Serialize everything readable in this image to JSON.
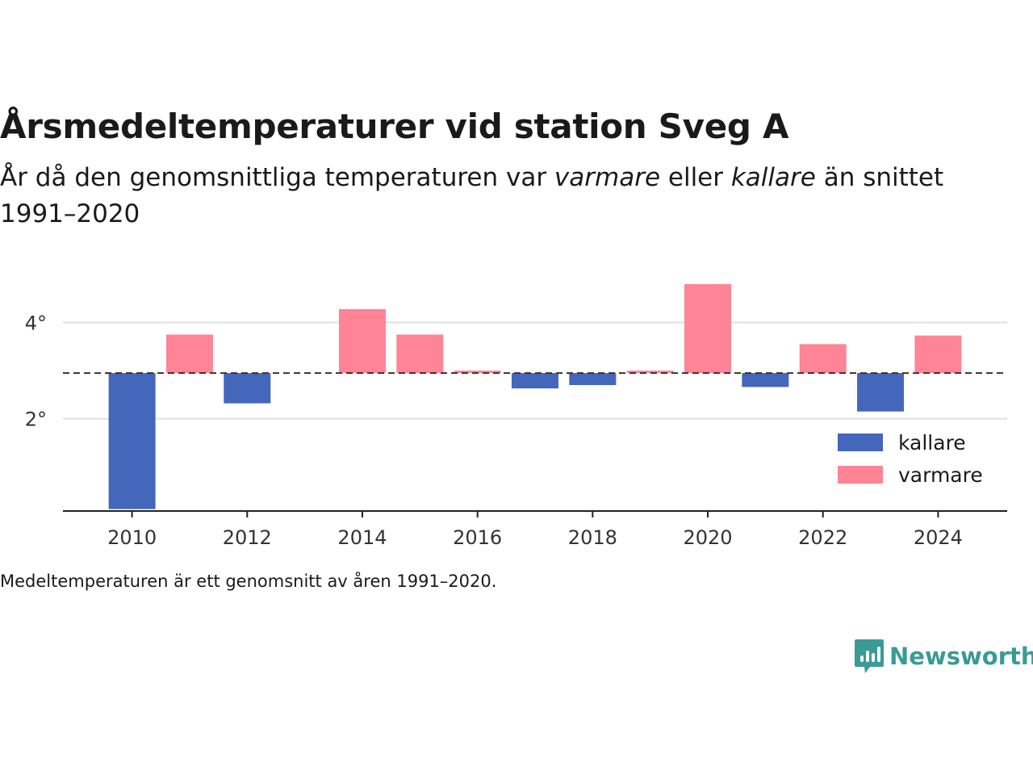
{
  "header": {
    "title": "Årsmedeltemperaturer vid station Sveg A",
    "subtitle_pre": "År då den genomsnittliga temperaturen var ",
    "subtitle_warm": "varmare",
    "subtitle_mid": " eller ",
    "subtitle_cold": "kallare",
    "subtitle_post": " än snittet 1991–2020"
  },
  "footnote": "Medeltemperaturen är ett genomsnitt av åren 1991–2020.",
  "logo": {
    "text": "Newsworthy",
    "icon": "chart-speech-bubble-icon"
  },
  "colors": {
    "kallare": "#4466bb",
    "varmare": "#ff8495",
    "baseline": "#333333",
    "grid": "#e0e0e0",
    "brand": "#3a9b95"
  },
  "chart_data": {
    "type": "bar",
    "baseline": 2.95,
    "ylim": [
      0.08,
      5.0
    ],
    "xlim": [
      2008.8,
      2025.2
    ],
    "yticks": [
      2,
      4
    ],
    "ytick_labels": [
      "2°",
      "4°"
    ],
    "xticks": [
      2010,
      2012,
      2014,
      2016,
      2018,
      2020,
      2022,
      2024
    ],
    "xtick_labels": [
      "2010",
      "2012",
      "2014",
      "2016",
      "2018",
      "2020",
      "2022",
      "2024"
    ],
    "legend": {
      "position": "right",
      "entries": [
        {
          "key": "kallare",
          "label": "kallare"
        },
        {
          "key": "varmare",
          "label": "varmare"
        }
      ]
    },
    "series": [
      {
        "year": 2010,
        "value": 0.12
      },
      {
        "year": 2011,
        "value": 3.75
      },
      {
        "year": 2012,
        "value": 2.32
      },
      {
        "year": 2013,
        "value": 2.95
      },
      {
        "year": 2014,
        "value": 4.28
      },
      {
        "year": 2015,
        "value": 3.75
      },
      {
        "year": 2016,
        "value": 3.0
      },
      {
        "year": 2017,
        "value": 2.63
      },
      {
        "year": 2018,
        "value": 2.7
      },
      {
        "year": 2019,
        "value": 3.0
      },
      {
        "year": 2020,
        "value": 4.8
      },
      {
        "year": 2021,
        "value": 2.66
      },
      {
        "year": 2022,
        "value": 3.55
      },
      {
        "year": 2023,
        "value": 2.15
      },
      {
        "year": 2024,
        "value": 3.73
      }
    ]
  }
}
